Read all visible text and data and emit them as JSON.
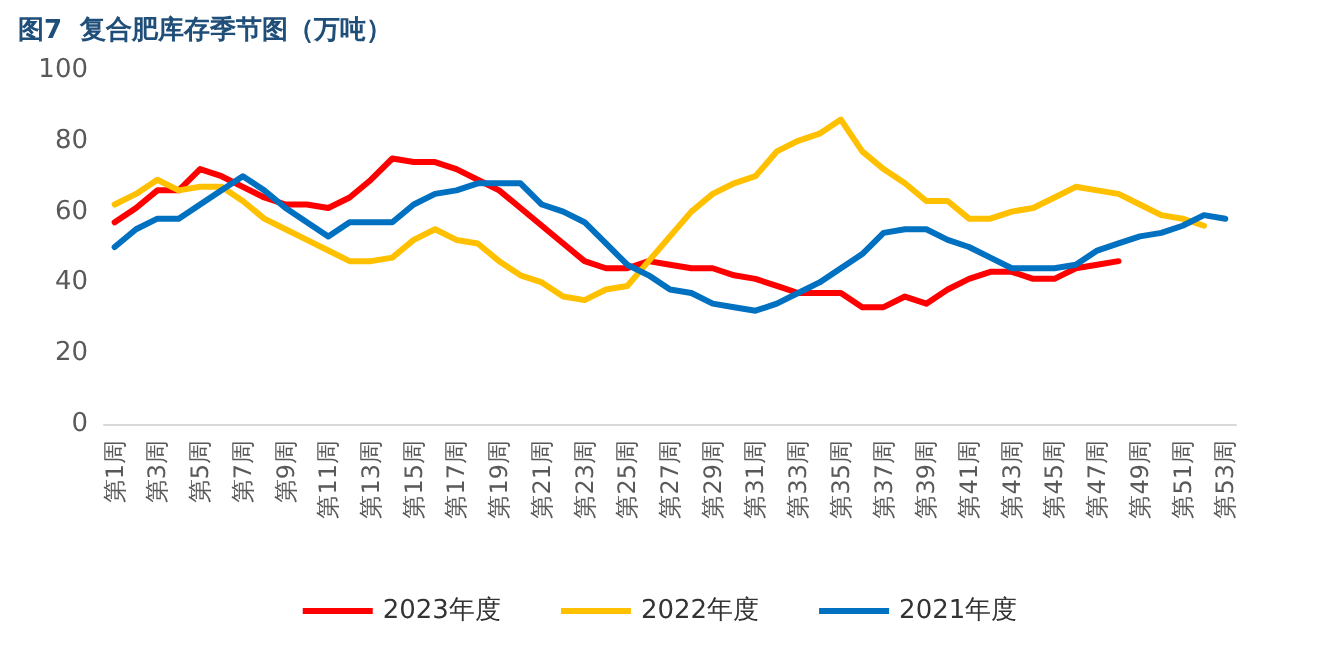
{
  "chart_data": {
    "type": "line",
    "title": "图7  复合肥库存季节图（万吨）",
    "categories": [
      "第1周",
      null,
      "第3周",
      null,
      "第5周",
      null,
      "第7周",
      null,
      "第9周",
      null,
      "第11周",
      null,
      "第13周",
      null,
      "第15周",
      null,
      "第17周",
      null,
      "第19周",
      null,
      "第21周",
      null,
      "第23周",
      null,
      "第25周",
      null,
      "第27周",
      null,
      "第29周",
      null,
      "第31周",
      null,
      "第33周",
      null,
      "第35周",
      null,
      "第37周",
      null,
      "第39周",
      null,
      "第41周",
      null,
      "第43周",
      null,
      "第45周",
      null,
      "第47周",
      null,
      "第49周",
      null,
      "第51周",
      null,
      "第53周"
    ],
    "series": [
      {
        "name": "2023年度",
        "color": "#ff0000",
        "values": [
          57,
          61,
          66,
          66,
          72,
          70,
          67,
          64,
          62,
          62,
          61,
          64,
          69,
          75,
          74,
          74,
          72,
          69,
          66,
          61,
          56,
          51,
          46,
          44,
          44,
          46,
          45,
          44,
          44,
          42,
          41,
          39,
          37,
          37,
          37,
          33,
          33,
          36,
          34,
          38,
          41,
          43,
          43,
          41,
          41,
          44,
          45,
          46,
          null,
          null,
          null,
          null,
          null
        ]
      },
      {
        "name": "2022年度",
        "color": "#ffc000",
        "values": [
          62,
          65,
          69,
          66,
          67,
          67,
          63,
          58,
          55,
          52,
          49,
          46,
          46,
          47,
          52,
          55,
          52,
          51,
          46,
          42,
          40,
          36,
          35,
          38,
          39,
          46,
          53,
          60,
          65,
          68,
          70,
          77,
          80,
          82,
          86,
          77,
          72,
          68,
          63,
          63,
          58,
          58,
          60,
          61,
          64,
          67,
          66,
          65,
          62,
          59,
          58,
          56,
          null
        ]
      },
      {
        "name": "2021年度",
        "color": "#0070c0",
        "values": [
          50,
          55,
          58,
          58,
          62,
          66,
          70,
          66,
          61,
          57,
          53,
          57,
          57,
          57,
          62,
          65,
          66,
          68,
          68,
          68,
          62,
          60,
          57,
          51,
          45,
          42,
          38,
          37,
          34,
          33,
          32,
          34,
          37,
          40,
          44,
          48,
          54,
          55,
          55,
          52,
          50,
          47,
          44,
          44,
          44,
          45,
          49,
          51,
          53,
          54,
          56,
          59,
          58
        ]
      }
    ],
    "ylim": [
      0,
      100
    ],
    "yticks": [
      0,
      20,
      40,
      60,
      80,
      100
    ],
    "grid": false,
    "legend": "bottom",
    "marker": "none",
    "line_style": "solid"
  }
}
